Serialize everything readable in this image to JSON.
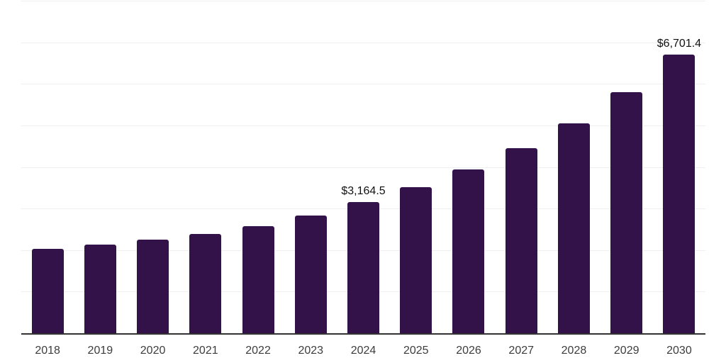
{
  "chart_data": {
    "type": "bar",
    "title": "",
    "xlabel": "",
    "ylabel": "",
    "categories": [
      "2018",
      "2019",
      "2020",
      "2021",
      "2022",
      "2023",
      "2024",
      "2025",
      "2026",
      "2027",
      "2028",
      "2029",
      "2030"
    ],
    "values": [
      2030,
      2130,
      2245,
      2385,
      2570,
      2840,
      3164.5,
      3520,
      3945,
      4455,
      5050,
      5805,
      6701.4
    ],
    "data_labels": [
      "",
      "",
      "",
      "",
      "",
      "",
      "$3,164.5",
      "",
      "",
      "",
      "",
      "",
      "$6,701.4"
    ],
    "ylim": [
      0,
      8000
    ],
    "gridline_interval": 1000,
    "grid": "horizontal-only",
    "y_axis_tick_labels_visible": false,
    "legend": "none"
  },
  "colors": {
    "bar": "#331149",
    "gridline": "#efefef",
    "axis_line": "#333333",
    "tick_label": "#3d3d3d",
    "data_label": "#111111",
    "background": "#ffffff"
  }
}
